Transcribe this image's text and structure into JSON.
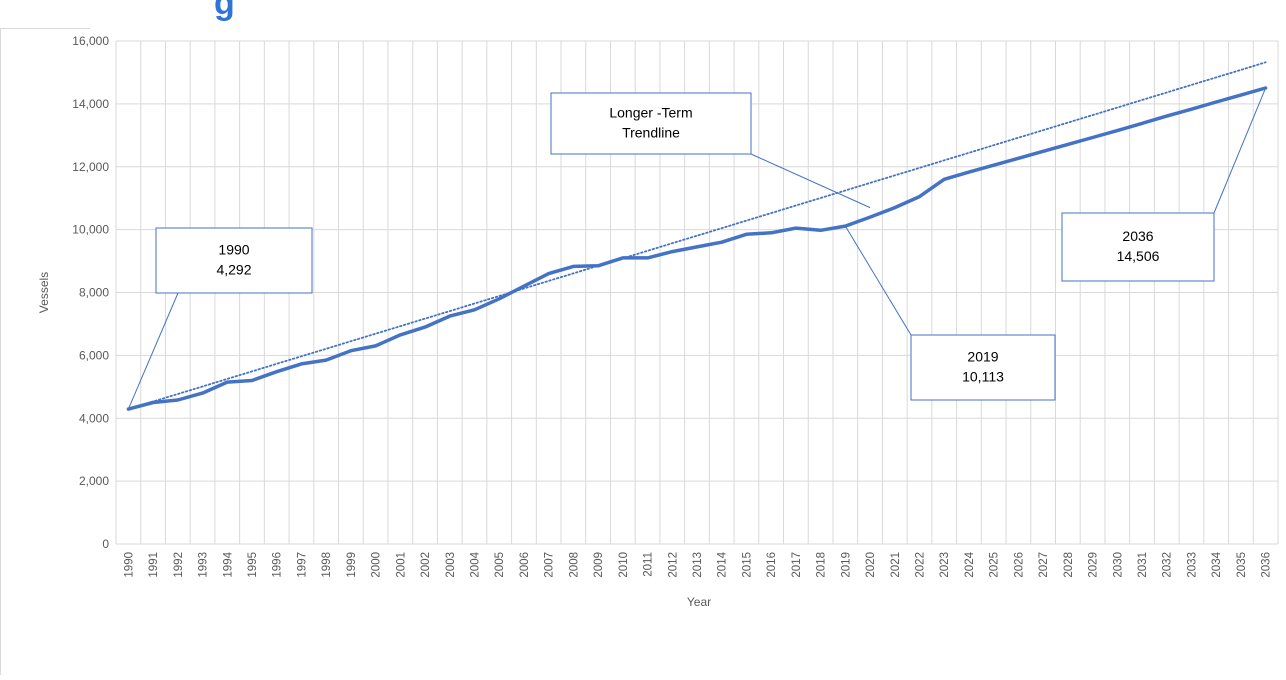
{
  "chart_data": {
    "type": "line",
    "title": "",
    "xlabel": "Year",
    "ylabel": "Vessels",
    "ylim": [
      0,
      16000
    ],
    "yticks": [
      0,
      2000,
      4000,
      6000,
      8000,
      10000,
      12000,
      14000,
      16000
    ],
    "ytick_labels": [
      "0",
      "2,000",
      "4,000",
      "6,000",
      "8,000",
      "10,000",
      "12,000",
      "14,000",
      "16,000"
    ],
    "categories": [
      "1990",
      "1991",
      "1992",
      "1993",
      "1994",
      "1995",
      "1996",
      "1997",
      "1998",
      "1999",
      "2000",
      "2001",
      "2002",
      "2003",
      "2004",
      "2005",
      "2006",
      "2007",
      "2008",
      "2009",
      "2010",
      "2011",
      "2012",
      "2013",
      "2014",
      "2015",
      "2016",
      "2017",
      "2018",
      "2019",
      "2020",
      "2021",
      "2022",
      "2023",
      "2024",
      "2025",
      "2026",
      "2027",
      "2028",
      "2029",
      "2030",
      "2031",
      "2032",
      "2033",
      "2034",
      "2035",
      "2036"
    ],
    "grid": true,
    "series": [
      {
        "style": "solid",
        "color": "#4472c4",
        "values": [
          4292,
          4500,
          4580,
          4800,
          5150,
          5200,
          5480,
          5730,
          5850,
          6150,
          6300,
          6650,
          6900,
          7250,
          7450,
          7800,
          8200,
          8600,
          8830,
          8850,
          9100,
          9100,
          9300,
          9450,
          9600,
          9850,
          9900,
          10050,
          9980,
          10113,
          10400,
          10700,
          11050,
          11600,
          11830,
          12050,
          12270,
          12490,
          12710,
          12930,
          13150,
          13380,
          13610,
          13830,
          14060,
          14280,
          14506
        ]
      },
      {
        "style": "dotted",
        "color": "#4472c4",
        "values": [
          4292,
          4532,
          4772,
          5011,
          5251,
          5491,
          5731,
          5970,
          6210,
          6450,
          6690,
          6929,
          7169,
          7409,
          7649,
          7888,
          8128,
          8368,
          8608,
          8848,
          9087,
          9327,
          9567,
          9807,
          10046,
          10286,
          10526,
          10766,
          11006,
          11245,
          11485,
          11725,
          11965,
          12204,
          12444,
          12684,
          12924,
          13163,
          13403,
          13643,
          13883,
          14122,
          14362,
          14602,
          14842,
          15082,
          15321
        ]
      }
    ],
    "annotations": [
      {
        "lines": [
          "1990",
          "4,292"
        ],
        "points_to": {
          "x": "1990",
          "y": 4292
        }
      },
      {
        "lines": [
          "Longer -Term",
          "Trendline"
        ],
        "points_to": {
          "x": "2020",
          "y": 10700
        }
      },
      {
        "lines": [
          "2019",
          "10,113"
        ],
        "points_to": {
          "x": "2019",
          "y": 10113
        }
      },
      {
        "lines": [
          "2036",
          "14,506"
        ],
        "points_to": {
          "x": "2036",
          "y": 14506
        }
      }
    ]
  },
  "colors": {
    "line": "#4472c4",
    "grid": "#d9d9d9",
    "axis_text": "#595959",
    "callout_border": "#4472c4",
    "title_fragment": "#2e75d6"
  },
  "partial_title_glyph": "g"
}
